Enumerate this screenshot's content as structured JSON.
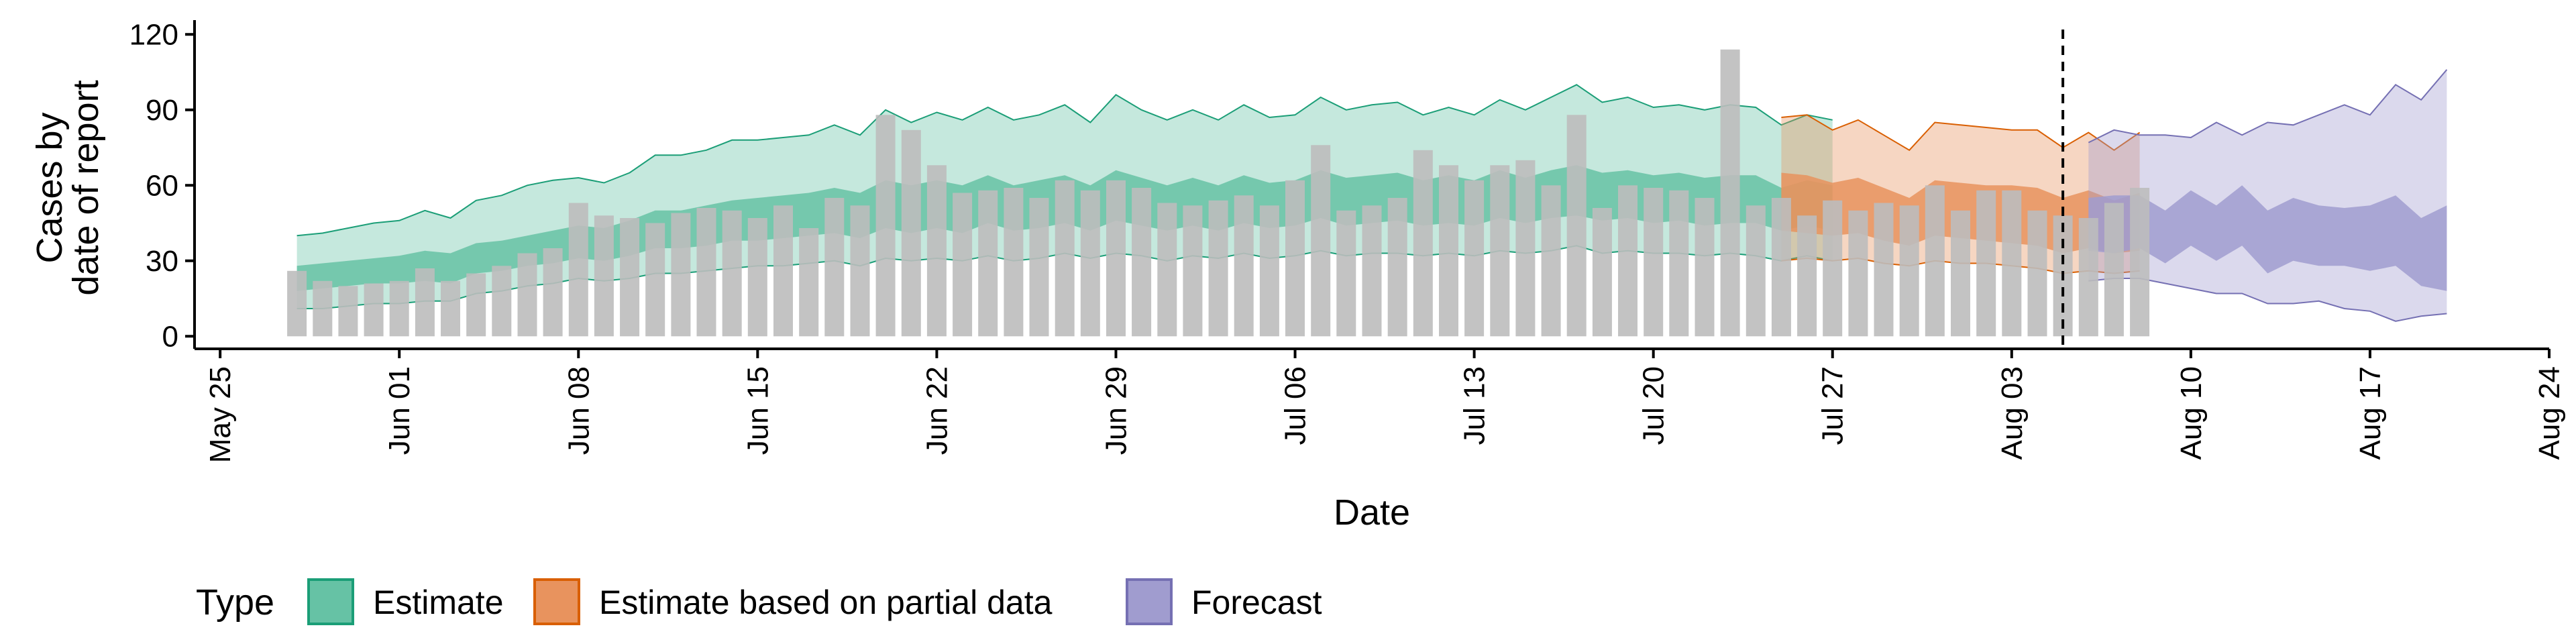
{
  "chart_data": {
    "type": "bar",
    "xlabel": "Date",
    "ylabel": "Cases by\ndate of report",
    "ylim": [
      -5,
      123
    ],
    "yticks": [
      0,
      30,
      60,
      90,
      120
    ],
    "x_tick_labels": [
      "May 25",
      "Jun 01",
      "Jun 08",
      "Jun 15",
      "Jun 22",
      "Jun 29",
      "Jul 06",
      "Jul 13",
      "Jul 20",
      "Jul 27",
      "Aug 03",
      "Aug 10",
      "Aug 17",
      "Aug 24"
    ],
    "x_tick_dates": [
      "2020-05-25",
      "2020-06-01",
      "2020-06-08",
      "2020-06-15",
      "2020-06-22",
      "2020-06-29",
      "2020-07-06",
      "2020-07-13",
      "2020-07-20",
      "2020-07-27",
      "2020-08-03",
      "2020-08-10",
      "2020-08-17",
      "2020-08-24"
    ],
    "xlim": [
      "2020-05-24",
      "2020-08-24"
    ],
    "reference_line_date": "2020-08-05",
    "grid": false,
    "legend_position": "bottom-left",
    "legend": {
      "title": "Type",
      "items": [
        {
          "label": "Estimate",
          "fill": "#66C2A5",
          "stroke": "#1B9E77"
        },
        {
          "label": "Estimate based on partial data",
          "fill": "#E8935E",
          "stroke": "#D95F02"
        },
        {
          "label": "Forecast",
          "fill": "#A09CCF",
          "stroke": "#7570B3"
        }
      ]
    },
    "bar_color": "#BDBDBD",
    "reported_cases": {
      "start_date": "2020-05-28",
      "values": [
        26,
        22,
        20,
        21,
        22,
        27,
        22,
        25,
        28,
        33,
        35,
        53,
        48,
        47,
        45,
        49,
        51,
        50,
        47,
        52,
        43,
        55,
        52,
        88,
        82,
        68,
        57,
        58,
        59,
        55,
        62,
        58,
        62,
        59,
        53,
        52,
        54,
        56,
        52,
        62,
        76,
        50,
        52,
        55,
        74,
        68,
        62,
        68,
        70,
        60,
        88,
        51,
        60,
        59,
        58,
        55,
        114,
        52,
        55,
        48,
        54,
        50,
        53,
        52,
        60,
        50,
        58,
        58,
        50,
        48,
        47,
        53,
        59
      ]
    },
    "series": [
      {
        "name": "Estimate",
        "start_date": "2020-05-28",
        "outer_upper": [
          40,
          41,
          43,
          45,
          46,
          50,
          47,
          54,
          56,
          60,
          62,
          63,
          61,
          65,
          72,
          72,
          74,
          78,
          78,
          79,
          80,
          84,
          80,
          90,
          85,
          89,
          86,
          91,
          86,
          88,
          92,
          85,
          96,
          90,
          86,
          90,
          86,
          92,
          87,
          88,
          95,
          90,
          92,
          93,
          88,
          91,
          88,
          94,
          90,
          95,
          100,
          93,
          95,
          91,
          92,
          90,
          92,
          91,
          84,
          88,
          86
        ],
        "inner_upper": [
          28,
          29,
          30,
          31,
          32,
          34,
          33,
          37,
          38,
          40,
          42,
          44,
          43,
          46,
          50,
          50,
          52,
          54,
          55,
          56,
          57,
          59,
          57,
          62,
          60,
          62,
          60,
          64,
          60,
          62,
          64,
          60,
          66,
          63,
          60,
          63,
          60,
          64,
          61,
          62,
          66,
          63,
          64,
          65,
          62,
          64,
          62,
          66,
          63,
          66,
          68,
          65,
          66,
          64,
          65,
          63,
          64,
          64,
          59,
          62,
          60
        ],
        "inner_lower": [
          18,
          19,
          20,
          21,
          21,
          22,
          21,
          25,
          26,
          28,
          29,
          31,
          30,
          32,
          35,
          35,
          36,
          38,
          38,
          39,
          40,
          41,
          39,
          43,
          41,
          43,
          41,
          45,
          42,
          43,
          45,
          42,
          46,
          44,
          42,
          44,
          42,
          45,
          43,
          44,
          47,
          44,
          45,
          46,
          44,
          45,
          44,
          47,
          45,
          47,
          48,
          46,
          47,
          45,
          46,
          44,
          45,
          45,
          42,
          44,
          42
        ],
        "outer_lower": [
          11,
          11,
          12,
          13,
          13,
          14,
          14,
          17,
          18,
          20,
          21,
          23,
          22,
          23,
          25,
          25,
          26,
          27,
          28,
          28,
          29,
          30,
          28,
          31,
          30,
          31,
          30,
          32,
          30,
          31,
          33,
          31,
          33,
          32,
          30,
          32,
          31,
          33,
          31,
          32,
          34,
          32,
          33,
          33,
          32,
          33,
          32,
          34,
          33,
          34,
          36,
          33,
          34,
          33,
          33,
          32,
          33,
          32,
          30,
          32,
          30
        ]
      },
      {
        "name": "Estimate based on partial data",
        "start_date": "2020-07-25",
        "outer_upper": [
          87,
          88,
          82,
          86,
          80,
          74,
          85,
          84,
          83,
          82,
          82,
          75,
          81,
          74,
          81
        ],
        "inner_upper": [
          65,
          64,
          61,
          63,
          59,
          55,
          62,
          61,
          60,
          60,
          59,
          55,
          58,
          54,
          57
        ],
        "inner_lower": [
          42,
          41,
          40,
          41,
          38,
          36,
          40,
          39,
          38,
          37,
          36,
          33,
          35,
          33,
          34
        ],
        "outer_lower": [
          30,
          31,
          30,
          31,
          29,
          28,
          30,
          29,
          29,
          28,
          27,
          25,
          26,
          25,
          26
        ]
      },
      {
        "name": "Forecast",
        "start_date": "2020-08-06",
        "outer_upper": [
          77,
          82,
          80,
          80,
          79,
          85,
          80,
          85,
          84,
          88,
          92,
          88,
          100,
          94,
          106
        ],
        "inner_upper": [
          55,
          56,
          56,
          50,
          58,
          52,
          60,
          50,
          55,
          52,
          51,
          52,
          56,
          47,
          52
        ],
        "inner_lower": [
          34,
          33,
          35,
          29,
          36,
          30,
          36,
          25,
          30,
          28,
          28,
          26,
          28,
          20,
          18
        ],
        "outer_lower": [
          22,
          23,
          23,
          21,
          19,
          17,
          17,
          13,
          13,
          14,
          11,
          10,
          6,
          8,
          9
        ]
      }
    ]
  }
}
